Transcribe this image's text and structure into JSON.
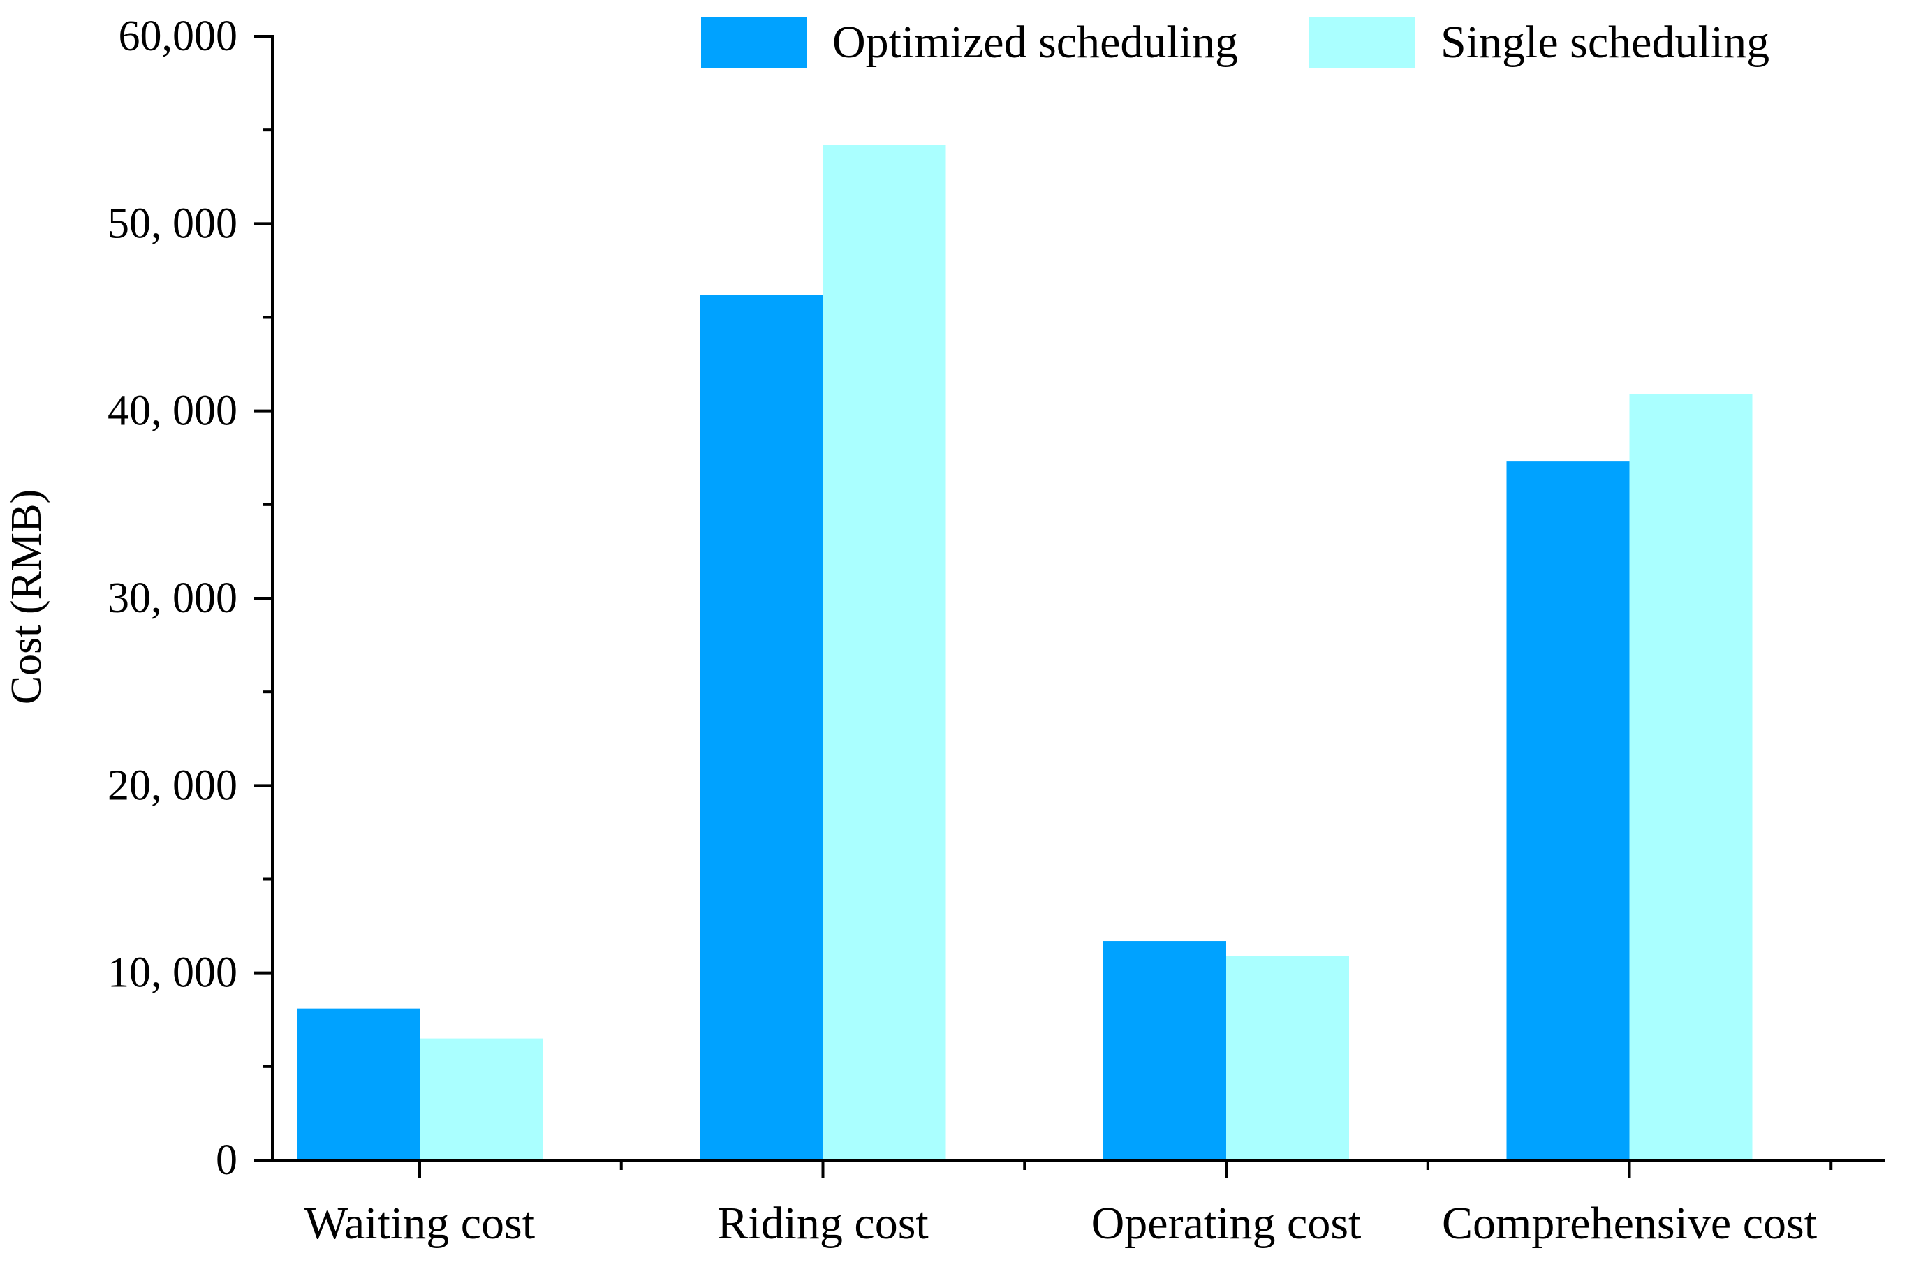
{
  "chart_data": {
    "type": "bar",
    "title": "",
    "xlabel": "",
    "ylabel": "Cost (RMB)",
    "ylim": [
      0,
      60000
    ],
    "yticks": [
      0,
      10000,
      20000,
      30000,
      40000,
      50000,
      60000
    ],
    "ytick_labels": [
      "0",
      "10, 000",
      "20, 000",
      "30, 000",
      "40, 000",
      "50, 000",
      "60,000"
    ],
    "categories": [
      "Waiting cost",
      "Riding cost",
      "Operating cost",
      "Comprehensive cost"
    ],
    "series": [
      {
        "name": "Optimized scheduling",
        "color": "#00a2ff",
        "values": [
          8100,
          46200,
          11700,
          37300
        ]
      },
      {
        "name": "Single scheduling",
        "color": "#aaffff",
        "values": [
          6500,
          54200,
          10900,
          40900
        ]
      }
    ],
    "legend_position": "top-right",
    "grid": false
  }
}
